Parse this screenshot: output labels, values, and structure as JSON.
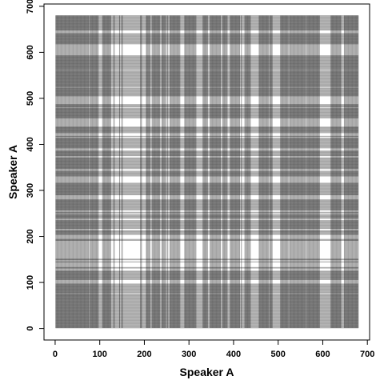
{
  "chart_data": {
    "type": "heatmap",
    "subtype": "recurrence-plot",
    "title": "",
    "xlabel": "Speaker A",
    "ylabel": "Speaker A",
    "xlim": [
      -25,
      705
    ],
    "ylim": [
      -25,
      705
    ],
    "xticks": [
      0,
      100,
      200,
      300,
      400,
      500,
      600,
      700
    ],
    "yticks": [
      0,
      100,
      200,
      300,
      400,
      500,
      600,
      700
    ],
    "xtick_labels": [
      "0",
      "100",
      "200",
      "300",
      "400",
      "500",
      "600",
      "700"
    ],
    "ytick_labels": [
      "0",
      "100",
      "200",
      "300",
      "400",
      "500",
      "600",
      "700"
    ],
    "n_points": 680,
    "data_range": [
      1,
      680
    ],
    "seed": 20240611,
    "recurrence_density": 0.72,
    "grid": false,
    "legend": "none",
    "colors": {
      "mark": "#000000",
      "background": "#ffffff",
      "axis": "#000000"
    }
  }
}
